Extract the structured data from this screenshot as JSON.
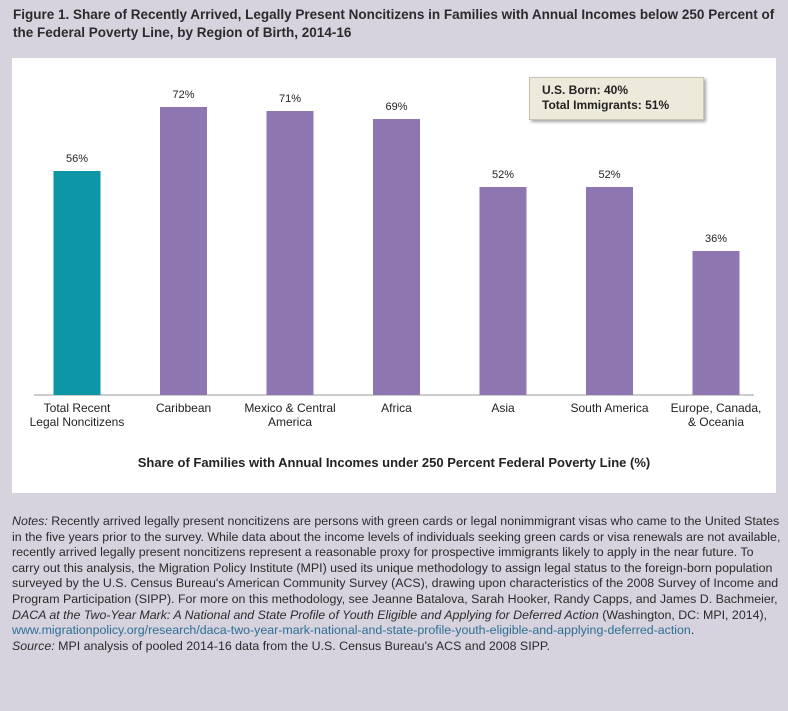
{
  "figure": {
    "title": "Figure 1. Share of Recently Arrived, Legally Present Noncitizens in Families with Annual Incomes below 250 Percent of the Federal Poverty Line, by Region of Birth, 2014-16"
  },
  "annotation": {
    "line1": "U.S. Born: 40%",
    "line2": "Total Immigrants: 51%"
  },
  "colors": {
    "highlight": "#0d97a6",
    "bars": "#8e76b0",
    "background": "#d6d2de",
    "link": "#2d6f93"
  },
  "chart_data": {
    "type": "bar",
    "categories": [
      "Total Recent Legal Noncitizens",
      "Caribbean",
      "Mexico & Central America",
      "Africa",
      "Asia",
      "South America",
      "Europe, Canada, & Oceania"
    ],
    "category_lines": [
      [
        "Total Recent",
        "Legal Noncitizens"
      ],
      [
        "Caribbean"
      ],
      [
        "Mexico & Central",
        "America"
      ],
      [
        "Africa"
      ],
      [
        "Asia"
      ],
      [
        "South America"
      ],
      [
        "Europe, Canada,",
        "& Oceania"
      ]
    ],
    "values": [
      56,
      72,
      71,
      69,
      52,
      52,
      36
    ],
    "value_labels": [
      "56%",
      "72%",
      "71%",
      "69%",
      "52%",
      "52%",
      "36%"
    ],
    "bar_colors": [
      "#0d97a6",
      "#8e76b0",
      "#8e76b0",
      "#8e76b0",
      "#8e76b0",
      "#8e76b0",
      "#8e76b0"
    ],
    "title": "",
    "xlabel": "Share of Families with Annual Incomes under 250 Percent Federal Poverty Line (%)",
    "ylabel": "",
    "ylim": [
      0,
      80
    ],
    "grid": false,
    "legend": "none"
  },
  "notes": {
    "notes_label": "Notes:",
    "notes_text": " Recently arrived legally present noncitizens are persons with green cards or legal nonimmigrant visas who came to the United States in the five years prior to the survey. While data about the income levels of individuals seeking green cards or visa renewals are not available, recently arrived legally present noncitizens represent a reasonable proxy for prospective immigrants likely to apply in the near future. To carry out this analysis, the Migration Policy Institute (MPI) used its unique methodology to assign legal status to the foreign-born population surveyed by the U.S. Census Bureau's American Community Survey (ACS), drawing upon characteristics of the 2008 Survey of Income and Program Participation (SIPP). For more on this methodology, see Jeanne Batalova, Sarah Hooker, Randy Capps, and James D. Bachmeier, ",
    "citation_title": "DACA at the Two-Year Mark: A National and State Profile of Youth Eligible and Applying for Deferred Action",
    "citation_tail": " (Washington, DC: MPI, 2014),",
    "link": "www.migrationpolicy.org/research/daca-two-year-mark-national-and-state-profile-youth-eligible-and-applying-deferred-action",
    "link_tail": ".",
    "source_label": "Source:",
    "source_text": " MPI analysis of pooled 2014-16 data from the U.S. Census Bureau's ACS and 2008 SIPP."
  }
}
